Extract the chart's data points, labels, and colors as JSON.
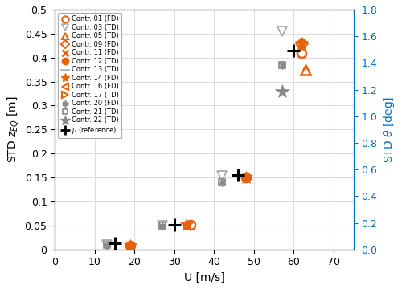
{
  "xlabel": "U [m/s]",
  "xlim": [
    0,
    75
  ],
  "ylim_left": [
    0,
    0.5
  ],
  "ylim_right": [
    0,
    1.8
  ],
  "xticks": [
    0,
    10,
    20,
    30,
    40,
    50,
    60,
    70
  ],
  "yticks_left": [
    0,
    0.05,
    0.1,
    0.15,
    0.2,
    0.25,
    0.3,
    0.35,
    0.4,
    0.45,
    0.5
  ],
  "yticks_right": [
    0,
    0.2,
    0.4,
    0.6,
    0.8,
    1.0,
    1.2,
    1.4,
    1.6,
    1.8
  ],
  "orange": "#E8600A",
  "gray": "#AAAAAA",
  "darkgray": "#888888",
  "black": "#000000",
  "blue": "#0070C0",
  "contr01": {
    "x": [
      19,
      34,
      48,
      62
    ],
    "y": [
      0.008,
      0.052,
      0.15,
      0.41
    ]
  },
  "contr03": {
    "x": [
      13,
      27,
      42,
      57
    ],
    "y": [
      0.01,
      0.05,
      0.153,
      0.455
    ]
  },
  "contr05": {
    "x": [
      63
    ],
    "y": [
      0.375
    ]
  },
  "contr09": {
    "x": [
      62
    ],
    "y": [
      0.43
    ]
  },
  "contr12": {
    "x": [
      19,
      33,
      48
    ],
    "y": [
      0.008,
      0.052,
      0.15
    ]
  },
  "contr14": {
    "x": [
      19,
      33,
      48,
      62
    ],
    "y": [
      0.008,
      0.052,
      0.15,
      0.43
    ]
  },
  "contr20": {
    "x": [
      13,
      27,
      42,
      57
    ],
    "y": [
      0.01,
      0.05,
      0.14,
      0.385
    ]
  },
  "contr21": {
    "x": [
      13,
      27,
      42,
      57
    ],
    "y": [
      0.01,
      0.05,
      0.14,
      0.385
    ]
  },
  "contr22": {
    "x": [
      57
    ],
    "y": [
      0.33
    ]
  },
  "mu_ref": {
    "x": [
      15,
      30,
      46,
      60
    ],
    "y": [
      0.013,
      0.052,
      0.155,
      0.415
    ]
  }
}
